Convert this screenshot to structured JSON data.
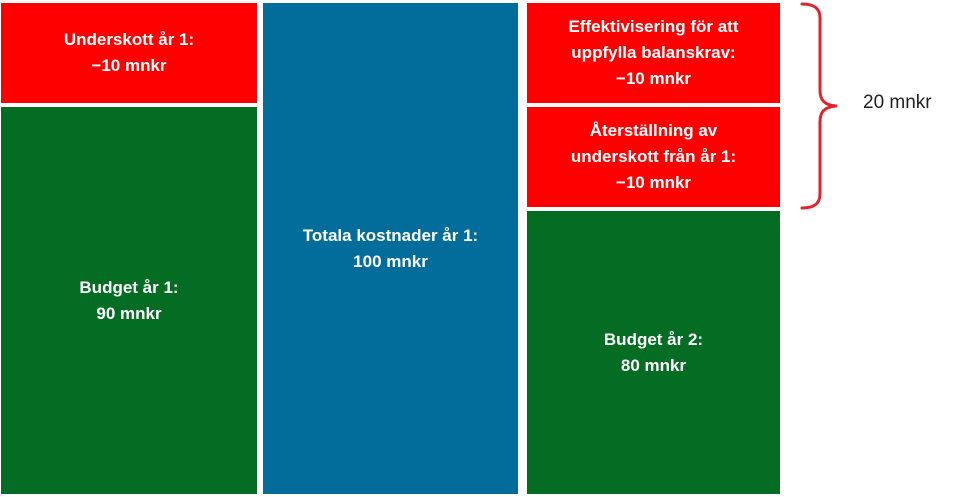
{
  "column1": {
    "deficit": "Underskott år 1:\n−10 mnkr",
    "budget": "Budget år 1:\n90 mnkr"
  },
  "column2": {
    "total": "Totala kostnader år 1:\n100 mnkr"
  },
  "column3": {
    "efficiency": "Effektivisering för att\nuppfylla balanskrav:\n−10 mnkr",
    "restoration": "Återställning av\nunderskott från år 1:\n−10 mnkr",
    "budget": "Budget år 2:\n80 mnkr"
  },
  "brace": {
    "label": "20 mnkr",
    "color": "#e4222b"
  },
  "colors": {
    "red": "#fe0000",
    "green": "#056c24",
    "blue": "#026c9a"
  }
}
